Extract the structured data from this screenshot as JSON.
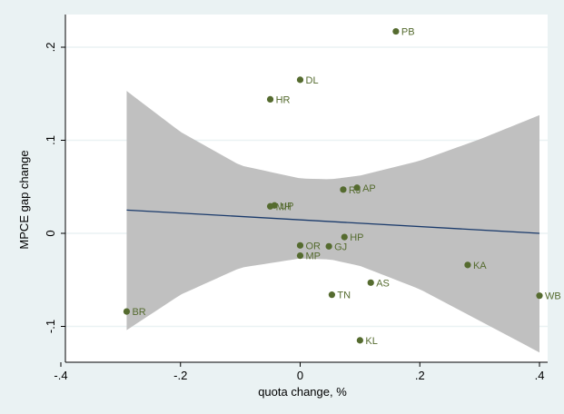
{
  "chart_data": {
    "type": "scatter",
    "title": "",
    "xlabel": "quota change, %",
    "ylabel": "MPCE gap change",
    "xlim": [
      -0.4,
      0.4
    ],
    "ylim": [
      -0.12,
      0.22
    ],
    "xticks": [
      -0.4,
      -0.2,
      0,
      0.2,
      0.4
    ],
    "xtick_labels": [
      "-.4",
      "-.2",
      "0",
      ".2",
      ".4"
    ],
    "yticks": [
      -0.1,
      0,
      0.1,
      0.2
    ],
    "ytick_labels": [
      "-.1",
      "0",
      ".1",
      ".2"
    ],
    "grid": "horizontal",
    "points": [
      {
        "label": "PB",
        "x": 0.16,
        "y": 0.217
      },
      {
        "label": "DL",
        "x": 0.0,
        "y": 0.165
      },
      {
        "label": "HR",
        "x": -0.05,
        "y": 0.144
      },
      {
        "label": "AP",
        "x": 0.095,
        "y": 0.049
      },
      {
        "label": "RJ",
        "x": 0.072,
        "y": 0.047
      },
      {
        "label": "UP",
        "x": -0.043,
        "y": 0.03
      },
      {
        "label": "MH",
        "x": -0.05,
        "y": 0.029
      },
      {
        "label": "HP",
        "x": 0.074,
        "y": -0.004
      },
      {
        "label": "OR",
        "x": 0.0,
        "y": -0.013
      },
      {
        "label": "GJ",
        "x": 0.048,
        "y": -0.014
      },
      {
        "label": "MP",
        "x": 0.0,
        "y": -0.024
      },
      {
        "label": "KA",
        "x": 0.28,
        "y": -0.034
      },
      {
        "label": "AS",
        "x": 0.118,
        "y": -0.053
      },
      {
        "label": "TN",
        "x": 0.053,
        "y": -0.066
      },
      {
        "label": "WB",
        "x": 0.4,
        "y": -0.067
      },
      {
        "label": "BR",
        "x": -0.29,
        "y": -0.084
      },
      {
        "label": "KL",
        "x": 0.1,
        "y": -0.115
      }
    ],
    "fit_line": {
      "x": [
        -0.29,
        0.4
      ],
      "y": [
        0.025,
        0.0
      ]
    },
    "confidence_band": {
      "x": [
        -0.29,
        -0.2,
        -0.1,
        0.0,
        0.05,
        0.1,
        0.2,
        0.3,
        0.4
      ],
      "upper": [
        0.153,
        0.109,
        0.073,
        0.059,
        0.058,
        0.062,
        0.078,
        0.101,
        0.127
      ],
      "lower": [
        -0.104,
        -0.066,
        -0.037,
        -0.027,
        -0.028,
        -0.035,
        -0.06,
        -0.094,
        -0.128
      ]
    },
    "colors": {
      "background": "#eaf2f3",
      "plot_area": "#ffffff",
      "marker": "#556b2f",
      "label": "#556b2f",
      "fit_line": "#1a3a6b",
      "band": "#c0c0c0",
      "grid": "#eaf2f3",
      "axis_text": "#000000"
    }
  }
}
